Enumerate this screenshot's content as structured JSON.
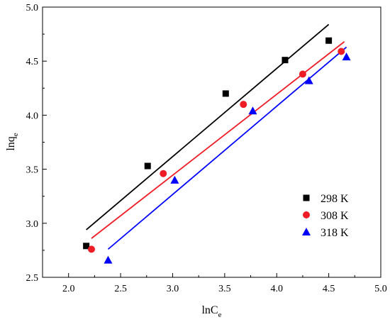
{
  "chart_data": {
    "type": "scatter",
    "xlabel": "lnC",
    "xlabel_sub": "e",
    "ylabel": "lnq",
    "ylabel_sub": "e",
    "xlim": [
      1.75,
      5.0
    ],
    "ylim": [
      2.5,
      5.0
    ],
    "xticks": [
      "2.0",
      "2.5",
      "3.0",
      "3.5",
      "4.0",
      "4.5",
      "5.0"
    ],
    "yticks": [
      "2.5",
      "3.0",
      "3.5",
      "4.0",
      "4.5",
      "5.0"
    ],
    "legend_position": "bottom-right",
    "grid": false,
    "series": [
      {
        "name": "298 K",
        "marker": "square",
        "color": "#000000",
        "points": [
          [
            2.17,
            2.79
          ],
          [
            2.76,
            3.53
          ],
          [
            3.51,
            4.2
          ],
          [
            4.08,
            4.51
          ],
          [
            4.5,
            4.69
          ]
        ],
        "fit": [
          [
            2.17,
            2.94
          ],
          [
            4.5,
            4.84
          ]
        ]
      },
      {
        "name": "308 K",
        "marker": "circle",
        "color": "#ee1c25",
        "points": [
          [
            2.22,
            2.76
          ],
          [
            2.91,
            3.46
          ],
          [
            3.68,
            4.1
          ],
          [
            4.25,
            4.38
          ],
          [
            4.62,
            4.59
          ]
        ],
        "fit": [
          [
            2.22,
            2.86
          ],
          [
            4.65,
            4.68
          ]
        ]
      },
      {
        "name": "318 K",
        "marker": "triangle",
        "color": "#0000ff",
        "points": [
          [
            2.38,
            2.66
          ],
          [
            3.02,
            3.4
          ],
          [
            3.77,
            4.04
          ],
          [
            4.31,
            4.32
          ],
          [
            4.67,
            4.54
          ]
        ],
        "fit": [
          [
            2.38,
            2.76
          ],
          [
            4.67,
            4.63
          ]
        ]
      }
    ]
  }
}
